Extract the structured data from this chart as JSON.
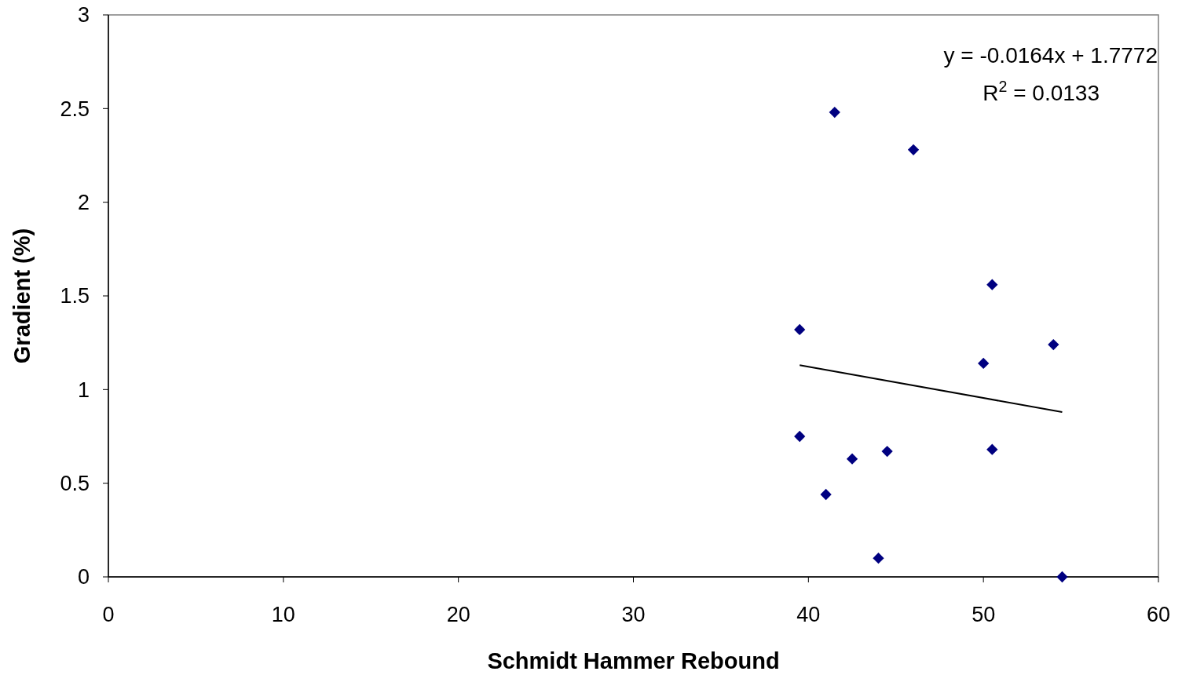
{
  "chart_data": {
    "type": "scatter",
    "xlabel": "Schmidt Hammer Rebound",
    "ylabel": "Gradient (%)",
    "xlim": [
      0,
      60
    ],
    "xticks": [
      0,
      10,
      20,
      30,
      40,
      50,
      60
    ],
    "ylim": [
      0,
      3
    ],
    "yticks": [
      0,
      0.5,
      1,
      1.5,
      2,
      2.5,
      3
    ],
    "grid": false,
    "marker": "diamond",
    "series": [
      {
        "color": "#000080",
        "x": [
          39.5,
          41.5,
          46,
          50.5,
          54,
          50,
          39.5,
          41,
          42.5,
          44.5,
          50.5,
          44,
          54.5
        ],
        "values": [
          1.32,
          2.48,
          2.28,
          1.56,
          1.24,
          1.14,
          0.75,
          0.44,
          0.63,
          0.67,
          0.68,
          0.1,
          0
        ]
      },
      {
        "type": "line",
        "marker": "none",
        "color": "#000000",
        "x": [
          39.5,
          54.5
        ],
        "values": [
          1.13,
          0.88
        ]
      }
    ],
    "annotations": [
      "y = -0.0164x + 1.7772",
      "R$^{2}$ = 0.0133"
    ]
  }
}
